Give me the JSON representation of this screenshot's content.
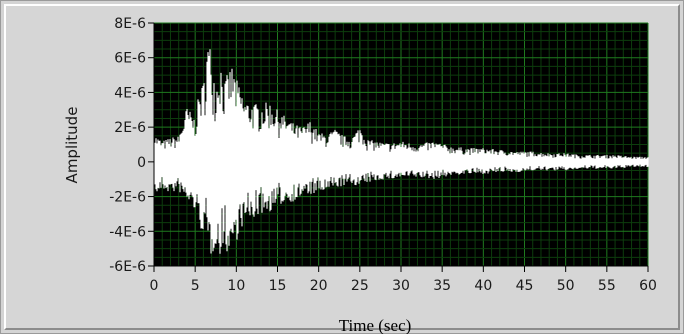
{
  "chart_data": {
    "type": "line",
    "title": "",
    "xlabel": "Time (sec)",
    "ylabel": "Amplitude",
    "xlim": [
      0,
      60
    ],
    "ylim": [
      -6e-06,
      8e-06
    ],
    "x_ticks": [
      0,
      5,
      10,
      15,
      20,
      25,
      30,
      35,
      40,
      45,
      50,
      55,
      60
    ],
    "x_tick_labels": [
      "0",
      "5",
      "10",
      "15",
      "20",
      "25",
      "30",
      "35",
      "40",
      "45",
      "50",
      "55",
      "60"
    ],
    "y_ticks": [
      -6e-06,
      -4e-06,
      -2e-06,
      0,
      2e-06,
      4e-06,
      6e-06,
      8e-06
    ],
    "y_tick_labels": [
      "-6E-6",
      "-4E-6",
      "-2E-6",
      "0",
      "2E-6",
      "4E-6",
      "6E-6",
      "8E-6"
    ],
    "grid": true,
    "legend": "none",
    "colors": {
      "plot_background": "#000000",
      "grid_major": "#1f7a1f",
      "grid_minor": "#0d3d0d",
      "trace": "#ffffff",
      "frame": "#d6d6d6"
    },
    "series": [
      {
        "x": [
          0,
          1,
          2,
          3,
          4,
          5,
          5.5,
          6,
          6.5,
          7,
          7.5,
          8,
          8.5,
          9,
          9.5,
          10,
          10.5,
          11,
          12,
          13,
          14,
          15,
          16,
          17,
          18,
          19,
          20,
          21,
          22,
          23,
          24,
          25,
          26,
          27,
          28,
          29,
          30,
          32,
          34,
          36,
          38,
          40,
          42,
          44,
          46,
          48,
          50,
          52,
          54,
          56,
          58,
          60
        ],
        "y_max": [
          1.6e-06,
          1.2e-06,
          1.4e-06,
          1.5e-06,
          3.2e-06,
          2.5e-06,
          4.1e-06,
          4.6e-06,
          7e-06,
          6.6e-06,
          4.2e-06,
          6.2e-06,
          4.5e-06,
          5.2e-06,
          5.6e-06,
          4.8e-06,
          4.2e-06,
          3.6e-06,
          3.4e-06,
          3.3e-06,
          3.5e-06,
          3e-06,
          2.6e-06,
          2.2e-06,
          2e-06,
          2.4e-06,
          1.7e-06,
          1.6e-06,
          1.9e-06,
          1.5e-06,
          1.4e-06,
          2.1e-06,
          1.3e-06,
          1.2e-06,
          1.1e-06,
          1.1e-06,
          1.2e-06,
          1e-06,
          1.2e-06,
          9e-07,
          8e-07,
          8e-07,
          7e-07,
          6e-07,
          6e-07,
          5e-07,
          5e-07,
          4e-07,
          4e-07,
          4e-07,
          3e-07,
          3e-07
        ],
        "y_min": [
          -2e-06,
          -1.6e-06,
          -1.8e-06,
          -1.7e-06,
          -2.3e-06,
          -2.8e-06,
          -3.9e-06,
          -4e-06,
          -4.8e-06,
          -5.6e-06,
          -4.7e-06,
          -5.8e-06,
          -4.5e-06,
          -5.5e-06,
          -4.8e-06,
          -4.6e-06,
          -3.9e-06,
          -3.6e-06,
          -3.3e-06,
          -3e-06,
          -2.9e-06,
          -2.6e-06,
          -2.3e-06,
          -2.3e-06,
          -2e-06,
          -1.9e-06,
          -1.8e-06,
          -1.7e-06,
          -1.5e-06,
          -1.4e-06,
          -1.3e-06,
          -1.4e-06,
          -1.2e-06,
          -1.1e-06,
          -1e-06,
          -1e-06,
          -9e-07,
          -9e-07,
          -1e-06,
          -8e-07,
          -7e-07,
          -7e-07,
          -6e-07,
          -6e-07,
          -5e-07,
          -5e-07,
          -5e-07,
          -4e-07,
          -4e-07,
          -4e-07,
          -3e-07,
          -3e-07
        ]
      }
    ]
  }
}
